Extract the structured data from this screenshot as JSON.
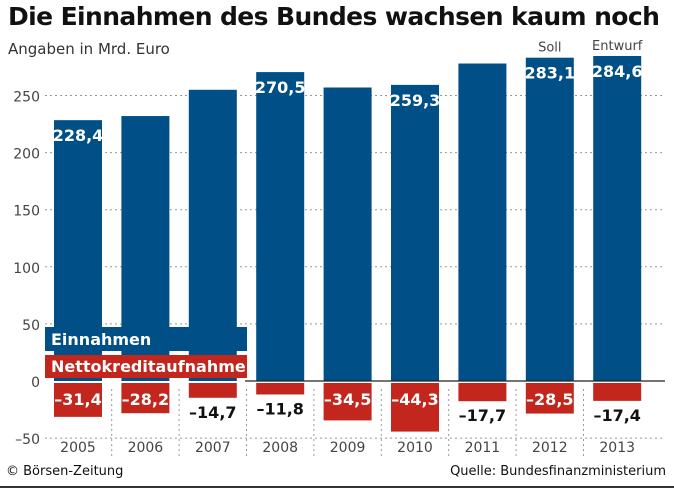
{
  "title": "Die Einnahmen des Bundes wachsen kaum noch",
  "subtitle": "Angaben in Mrd. Euro",
  "credit": "© Börsen-Zeitung",
  "source": "Quelle: Bundesfinanzministerium",
  "chart_data": {
    "type": "bar",
    "categories": [
      "2005",
      "2006",
      "2007",
      "2008",
      "2009",
      "2010",
      "2011",
      "2012",
      "2013"
    ],
    "category_notes": {
      "2012": "Soll",
      "2013": "Entwurf"
    },
    "series": [
      {
        "name": "Einnahmen",
        "color": "#004f86",
        "values": [
          228.4,
          232,
          255,
          270.5,
          257,
          259.3,
          278,
          283.1,
          284.6
        ],
        "labels": [
          "228,4",
          "",
          "",
          "270,5",
          "",
          "259,3",
          "",
          "283,1",
          "284,6"
        ]
      },
      {
        "name": "Nettokreditaufnahme",
        "color": "#c3261c",
        "values": [
          -31.4,
          -28.2,
          -14.7,
          -11.8,
          -34.5,
          -44.3,
          -17.7,
          -28.5,
          -17.4
        ],
        "labels": [
          "–31,4",
          "–28,2",
          "–14,7",
          "–11,8",
          "–34,5",
          "–44,3",
          "–17,7",
          "–28,5",
          "–17,4"
        ]
      }
    ],
    "yticks": [
      250,
      200,
      150,
      100,
      50,
      0,
      -50
    ],
    "ytick_labels": [
      "250",
      "200",
      "150",
      "100",
      "50",
      "0",
      "–50"
    ],
    "ylim": [
      -55,
      285
    ],
    "grid": true,
    "legend": "bottom-left"
  }
}
